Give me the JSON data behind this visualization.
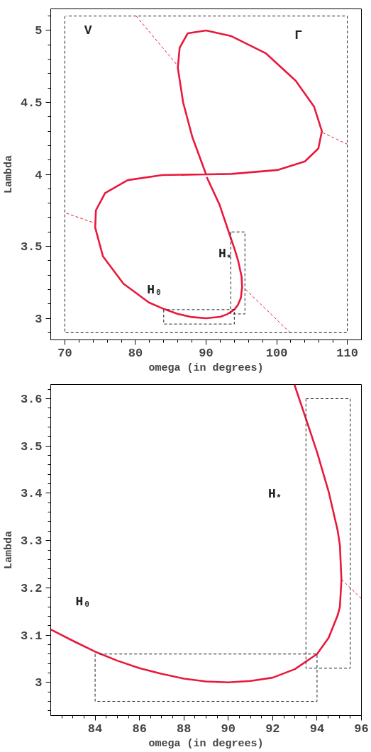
{
  "chart_data": [
    {
      "type": "line",
      "xlabel": "omega (in degrees)",
      "ylabel": "Lambda",
      "xlim": [
        68,
        112
      ],
      "ylim": [
        2.85,
        5.15
      ],
      "xticks": [
        70,
        {
          "value": 72,
          "label": null
        },
        {
          "value": 74,
          "label": null
        },
        {
          "value": 76,
          "label": null
        },
        {
          "value": 78,
          "label": null
        },
        80,
        {
          "value": 82,
          "label": null
        },
        {
          "value": 84,
          "label": null
        },
        {
          "value": 86,
          "label": null
        },
        {
          "value": 88,
          "label": null
        },
        90,
        {
          "value": 92,
          "label": null
        },
        {
          "value": 94,
          "label": null
        },
        {
          "value": 96,
          "label": null
        },
        {
          "value": 98,
          "label": null
        },
        100,
        {
          "value": 102,
          "label": null
        },
        {
          "value": 104,
          "label": null
        },
        {
          "value": 106,
          "label": null
        },
        {
          "value": 108,
          "label": null
        },
        110
      ],
      "yticks": [
        {
          "value": 2.9,
          "label": null
        },
        3,
        {
          "value": 3.1,
          "label": null
        },
        {
          "value": 3.2,
          "label": null
        },
        {
          "value": 3.3,
          "label": null
        },
        {
          "value": 3.4,
          "label": null
        },
        3.5,
        {
          "value": 3.6,
          "label": null
        },
        {
          "value": 3.7,
          "label": null
        },
        {
          "value": 3.8,
          "label": null
        },
        {
          "value": 3.9,
          "label": null
        },
        4,
        {
          "value": 4.1,
          "label": null
        },
        {
          "value": 4.2,
          "label": null
        },
        {
          "value": 4.3,
          "label": null
        },
        {
          "value": 4.4,
          "label": null
        },
        4.5,
        {
          "value": 4.6,
          "label": null
        },
        {
          "value": 4.7,
          "label": null
        },
        {
          "value": 4.8,
          "label": null
        },
        {
          "value": 4.9,
          "label": null
        },
        5,
        {
          "value": 5.1,
          "label": null
        }
      ],
      "grid": false,
      "marker": "none",
      "series": [
        {
          "color": "#e8193c",
          "line_style": "solid",
          "x": [
            90,
            88.05,
            86.75,
            86.0,
            86.26,
            87.4,
            90,
            93.6,
            98.5,
            102.7,
            105.3,
            106.4,
            105.9,
            104.0,
            100.1,
            93.6,
            90,
            83.8,
            78.9,
            75.7,
            74.4,
            74.3,
            75.4,
            78.3,
            81.9,
            84.0,
            86.0,
            88.0,
            90.0,
            92.0,
            93.0,
            94.0,
            94.52,
            94.93,
            95.1,
            95.03,
            94.52,
            94.0,
            93.49,
            91.9,
            90.1
          ],
          "values": [
            4.0,
            4.26,
            4.5,
            4.74,
            4.88,
            4.98,
            5.0,
            4.96,
            4.84,
            4.65,
            4.47,
            4.3,
            4.18,
            4.09,
            4.03,
            4.003,
            4.0,
            3.995,
            3.96,
            3.87,
            3.75,
            3.63,
            3.43,
            3.24,
            3.11,
            3.065,
            3.03,
            3.008,
            3.0,
            3.01,
            3.028,
            3.06,
            3.094,
            3.142,
            3.217,
            3.29,
            3.404,
            3.487,
            3.559,
            3.79,
            3.98
          ]
        },
        {
          "color": "#e8193c",
          "line_style": "dashed",
          "x": [
            80.1,
            85.9
          ],
          "values": [
            5.1,
            4.76
          ]
        },
        {
          "color": "#e8193c",
          "line_style": "dashed",
          "x": [
            106.5,
            110
          ],
          "values": [
            4.29,
            4.21
          ]
        },
        {
          "color": "#e8193c",
          "line_style": "dashed",
          "x": [
            70.2,
            74.3
          ],
          "values": [
            3.73,
            3.66
          ]
        },
        {
          "color": "#e8193c",
          "line_style": "dashed",
          "x": [
            95.6,
            101.9
          ],
          "values": [
            3.2,
            2.9
          ]
        },
        {
          "color": "#222222",
          "line_style": "dashed",
          "x": [
            70,
            70,
            110,
            110,
            70.2
          ],
          "values": [
            5.1,
            2.9,
            2.9,
            5.1,
            5.1
          ]
        },
        {
          "color": "#222222",
          "line_style": "dashed",
          "x": [
            84,
            84,
            94,
            94,
            84.2
          ],
          "values": [
            3.06,
            2.96,
            2.96,
            3.06,
            3.06
          ]
        },
        {
          "color": "#222222",
          "line_style": "dashed",
          "x": [
            93.5,
            93.5,
            95.5,
            95.5,
            93.55
          ],
          "values": [
            3.6,
            3.03,
            3.03,
            3.6,
            3.6
          ]
        }
      ],
      "annotations": [
        "V",
        "Γ",
        "H$_{*}$",
        "H₀"
      ]
    },
    {
      "type": "line",
      "xlabel": "omega (in degrees)",
      "ylabel": "Lambda",
      "xlim": [
        82,
        96
      ],
      "ylim": [
        2.93,
        3.63
      ],
      "xticks": [
        {
          "value": 82.5,
          "label": null
        },
        {
          "value": 83,
          "label": null
        },
        {
          "value": 83.5,
          "label": null
        },
        84,
        {
          "value": 84.5,
          "label": null
        },
        {
          "value": 85,
          "label": null
        },
        {
          "value": 85.5,
          "label": null
        },
        86,
        {
          "value": 86.5,
          "label": null
        },
        {
          "value": 87,
          "label": null
        },
        {
          "value": 87.5,
          "label": null
        },
        88,
        {
          "value": 88.5,
          "label": null
        },
        {
          "value": 89,
          "label": null
        },
        {
          "value": 89.5,
          "label": null
        },
        90,
        {
          "value": 90.5,
          "label": null
        },
        {
          "value": 91,
          "label": null
        },
        {
          "value": 91.5,
          "label": null
        },
        92,
        {
          "value": 92.5,
          "label": null
        },
        {
          "value": 93,
          "label": null
        },
        {
          "value": 93.5,
          "label": null
        },
        94,
        {
          "value": 94.5,
          "label": null
        },
        {
          "value": 95,
          "label": null
        },
        {
          "value": 95.5,
          "label": null
        },
        96
      ],
      "yticks": [
        {
          "value": 2.94,
          "label": null
        },
        {
          "value": 2.96,
          "label": null
        },
        {
          "value": 2.98,
          "label": null
        },
        3,
        {
          "value": 3.02,
          "label": null
        },
        {
          "value": 3.04,
          "label": null
        },
        {
          "value": 3.06,
          "label": null
        },
        {
          "value": 3.08,
          "label": null
        },
        3.1,
        {
          "value": 3.12,
          "label": null
        },
        {
          "value": 3.14,
          "label": null
        },
        {
          "value": 3.16,
          "label": null
        },
        {
          "value": 3.18,
          "label": null
        },
        3.2,
        {
          "value": 3.22,
          "label": null
        },
        {
          "value": 3.24,
          "label": null
        },
        {
          "value": 3.26,
          "label": null
        },
        {
          "value": 3.28,
          "label": null
        },
        3.3,
        {
          "value": 3.32,
          "label": null
        },
        {
          "value": 3.34,
          "label": null
        },
        {
          "value": 3.36,
          "label": null
        },
        {
          "value": 3.38,
          "label": null
        },
        3.4,
        {
          "value": 3.42,
          "label": null
        },
        {
          "value": 3.44,
          "label": null
        },
        {
          "value": 3.46,
          "label": null
        },
        {
          "value": 3.48,
          "label": null
        },
        3.5,
        {
          "value": 3.52,
          "label": null
        },
        {
          "value": 3.54,
          "label": null
        },
        {
          "value": 3.56,
          "label": null
        },
        {
          "value": 3.58,
          "label": null
        },
        3.6,
        {
          "value": 3.62,
          "label": null
        }
      ],
      "grid": false,
      "marker": "none",
      "series": [
        {
          "color": "#e8193c",
          "line_style": "solid",
          "x": [
            82.0,
            83.04,
            84.0,
            85.0,
            86.0,
            87.0,
            88.0,
            89.0,
            90.0,
            91.0,
            92.0,
            93.0,
            94.0,
            94.52,
            94.93,
            95.03,
            95.1,
            95.03,
            94.93,
            94.52,
            94.0,
            93.49,
            92.98
          ],
          "values": [
            3.112,
            3.087,
            3.065,
            3.046,
            3.03,
            3.018,
            3.008,
            3.002,
            3.0,
            3.003,
            3.01,
            3.028,
            3.06,
            3.094,
            3.142,
            3.16,
            3.217,
            3.29,
            3.321,
            3.404,
            3.487,
            3.559,
            3.63
          ]
        },
        {
          "color": "#e8193c",
          "line_style": "dashed",
          "x": [
            95.1,
            96
          ],
          "values": [
            3.218,
            3.177
          ]
        },
        {
          "color": "#222222",
          "line_style": "dashed",
          "x": [
            84,
            84,
            94,
            94,
            84.1
          ],
          "values": [
            3.06,
            2.96,
            2.96,
            3.06,
            3.06
          ]
        },
        {
          "color": "#222222",
          "line_style": "dashed",
          "x": [
            93.5,
            93.5,
            95.5,
            95.5,
            93.52
          ],
          "values": [
            3.6,
            3.03,
            3.03,
            3.6,
            3.6
          ]
        }
      ],
      "annotations": [
        "H$_{*}$",
        "H₀"
      ]
    }
  ]
}
